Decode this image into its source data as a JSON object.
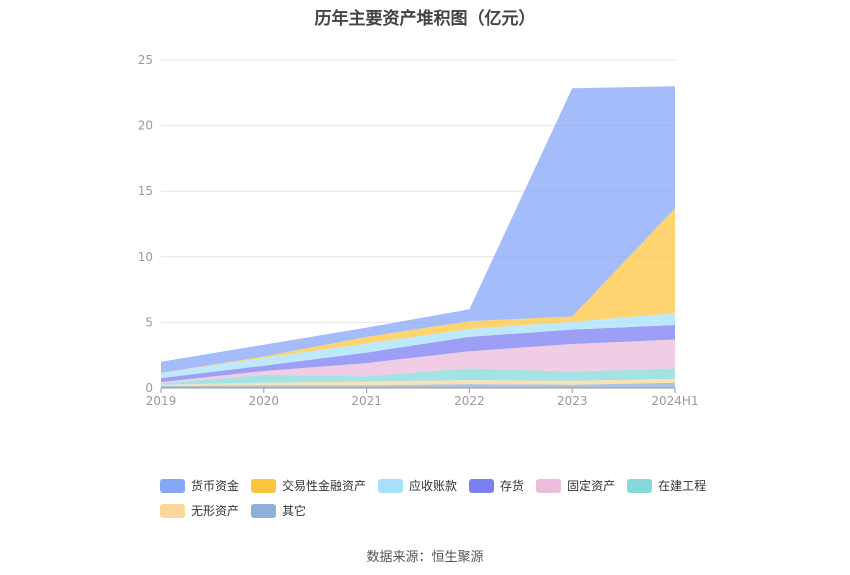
{
  "chart_data": {
    "type": "area",
    "title": "历年主要资产堆积图（亿元）",
    "xlabel": "",
    "ylabel": "",
    "ylim": [
      0,
      25
    ],
    "yticks": [
      0,
      5,
      10,
      15,
      20,
      25
    ],
    "categories": [
      "2019",
      "2020",
      "2021",
      "2022",
      "2023",
      "2024H1"
    ],
    "stacked": true,
    "grid": true,
    "legend_position": "bottom",
    "series": [
      {
        "name": "其它",
        "color": "#8eaedc",
        "values": [
          0.15,
          0.2,
          0.2,
          0.3,
          0.25,
          0.4
        ]
      },
      {
        "name": "无形资产",
        "color": "#fcd79a",
        "values": [
          0.1,
          0.2,
          0.3,
          0.3,
          0.3,
          0.3
        ]
      },
      {
        "name": "在建工程",
        "color": "#86d9d9",
        "values": [
          0.1,
          0.6,
          0.4,
          0.9,
          0.7,
          0.8
        ]
      },
      {
        "name": "固定资产",
        "color": "#ebbcdc",
        "values": [
          0.1,
          0.3,
          1.0,
          1.3,
          2.1,
          2.2
        ]
      },
      {
        "name": "存货",
        "color": "#7b7ff2",
        "values": [
          0.3,
          0.4,
          0.8,
          1.1,
          1.1,
          1.1
        ]
      },
      {
        "name": "应收账款",
        "color": "#a8e0fa",
        "values": [
          0.4,
          0.6,
          0.7,
          0.6,
          0.6,
          0.9
        ]
      },
      {
        "name": "交易性金融资产",
        "color": "#fcc540",
        "values": [
          0.0,
          0.1,
          0.5,
          0.6,
          0.4,
          8.0
        ]
      },
      {
        "name": "货币资金",
        "color": "#86a6f7",
        "values": [
          0.85,
          0.9,
          0.7,
          0.9,
          17.4,
          9.3
        ]
      }
    ],
    "legend_order": [
      "货币资金",
      "交易性金融资产",
      "应收账款",
      "存货",
      "固定资产",
      "在建工程",
      "无形资产",
      "其它"
    ]
  },
  "source": "数据来源：恒生聚源"
}
